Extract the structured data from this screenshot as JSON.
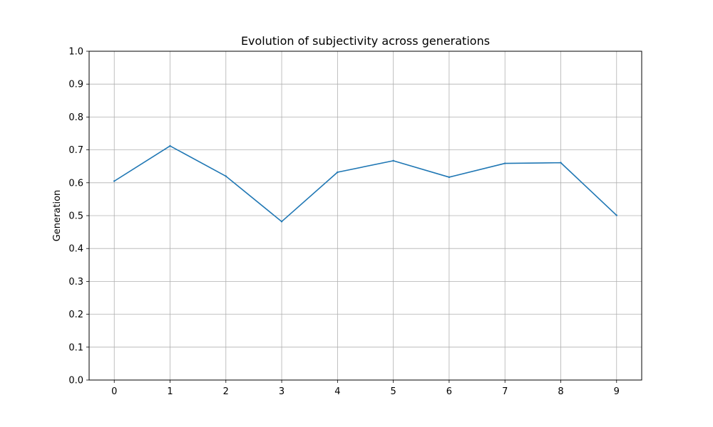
{
  "chart_data": {
    "type": "line",
    "title": "Evolution of subjectivity across generations",
    "xlabel": "",
    "ylabel": "Generation",
    "x": [
      0,
      1,
      2,
      3,
      4,
      5,
      6,
      7,
      8,
      9
    ],
    "series": [
      {
        "values": [
          0.605,
          0.712,
          0.62,
          0.482,
          0.632,
          0.667,
          0.617,
          0.659,
          0.661,
          0.501
        ],
        "color": "#1f77b4"
      }
    ],
    "xlim": [
      -0.45,
      9.45
    ],
    "ylim": [
      0,
      1
    ],
    "xticks": [
      "0",
      "1",
      "2",
      "3",
      "4",
      "5",
      "6",
      "7",
      "8",
      "9"
    ],
    "yticks": [
      "0.0",
      "0.1",
      "0.2",
      "0.3",
      "0.4",
      "0.5",
      "0.6",
      "0.7",
      "0.8",
      "0.9",
      "1.0"
    ],
    "grid": true,
    "grid_color": "#b0b0b0"
  }
}
